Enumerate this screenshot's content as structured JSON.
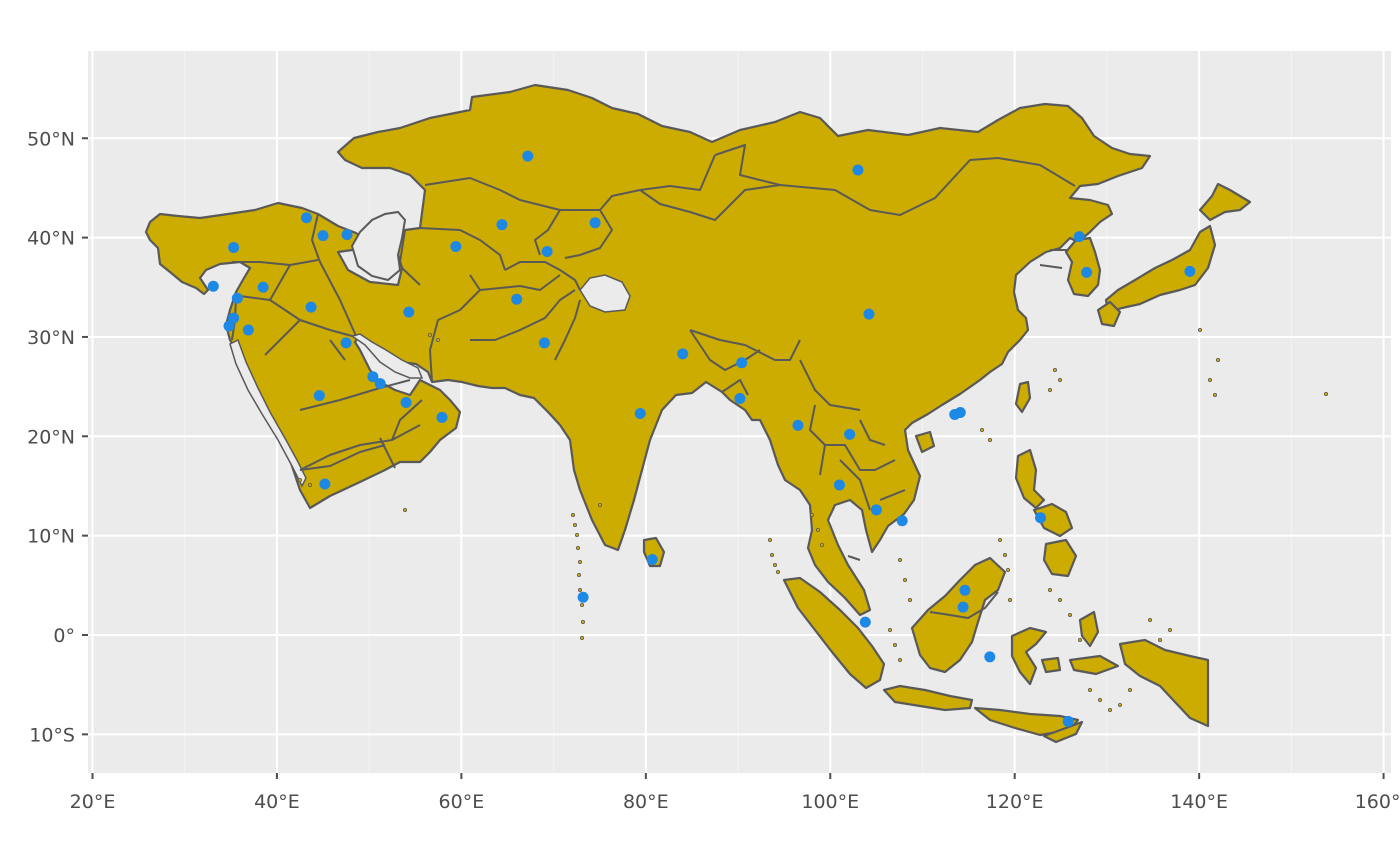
{
  "map": {
    "x_ticks": [
      {
        "deg": 20,
        "label": "20°E"
      },
      {
        "deg": 40,
        "label": "40°E"
      },
      {
        "deg": 60,
        "label": "60°E"
      },
      {
        "deg": 80,
        "label": "80°E"
      },
      {
        "deg": 100,
        "label": "100°E"
      },
      {
        "deg": 120,
        "label": "120°E"
      },
      {
        "deg": 140,
        "label": "140°E"
      },
      {
        "deg": 160,
        "label": "160°E"
      }
    ],
    "y_ticks": [
      {
        "deg": 50,
        "label": "50°N"
      },
      {
        "deg": 40,
        "label": "40°N"
      },
      {
        "deg": 30,
        "label": "30°N"
      },
      {
        "deg": 20,
        "label": "20°N"
      },
      {
        "deg": 10,
        "label": "10°N"
      },
      {
        "deg": 0,
        "label": "0°"
      },
      {
        "deg": -10,
        "label": "10°S"
      }
    ],
    "xlim": [
      19.5,
      160.5
    ],
    "ylim": [
      -14,
      58.5
    ],
    "colors": {
      "panel_background": "#EBEBEB",
      "land_fill": "#CCAC00",
      "border_stroke": "#595959",
      "point_fill": "#1E88E5",
      "gridline": "#FFFFFF"
    },
    "points": [
      {
        "lon": 67.2,
        "lat": 48.2
      },
      {
        "lon": 103.0,
        "lat": 46.8
      },
      {
        "lon": 43.2,
        "lat": 42.0
      },
      {
        "lon": 45.0,
        "lat": 40.2
      },
      {
        "lon": 47.6,
        "lat": 40.3
      },
      {
        "lon": 35.3,
        "lat": 39.0
      },
      {
        "lon": 59.4,
        "lat": 39.1
      },
      {
        "lon": 64.4,
        "lat": 41.3
      },
      {
        "lon": 74.5,
        "lat": 41.5
      },
      {
        "lon": 69.3,
        "lat": 38.6
      },
      {
        "lon": 127.0,
        "lat": 40.1
      },
      {
        "lon": 127.8,
        "lat": 36.5
      },
      {
        "lon": 139.0,
        "lat": 36.6
      },
      {
        "lon": 33.1,
        "lat": 35.1
      },
      {
        "lon": 38.5,
        "lat": 35.0
      },
      {
        "lon": 35.7,
        "lat": 33.9
      },
      {
        "lon": 43.7,
        "lat": 33.0
      },
      {
        "lon": 54.3,
        "lat": 32.5
      },
      {
        "lon": 66.0,
        "lat": 33.8
      },
      {
        "lon": 104.2,
        "lat": 32.3
      },
      {
        "lon": 35.3,
        "lat": 31.9
      },
      {
        "lon": 34.8,
        "lat": 31.1
      },
      {
        "lon": 36.9,
        "lat": 30.7
      },
      {
        "lon": 47.5,
        "lat": 29.4
      },
      {
        "lon": 69.0,
        "lat": 29.4
      },
      {
        "lon": 84.0,
        "lat": 28.3
      },
      {
        "lon": 90.4,
        "lat": 27.4
      },
      {
        "lon": 50.4,
        "lat": 26.0
      },
      {
        "lon": 51.2,
        "lat": 25.3
      },
      {
        "lon": 44.6,
        "lat": 24.1
      },
      {
        "lon": 54.0,
        "lat": 23.4
      },
      {
        "lon": 90.2,
        "lat": 23.8
      },
      {
        "lon": 79.4,
        "lat": 22.3
      },
      {
        "lon": 57.9,
        "lat": 21.9
      },
      {
        "lon": 113.5,
        "lat": 22.2
      },
      {
        "lon": 114.1,
        "lat": 22.4
      },
      {
        "lon": 96.5,
        "lat": 21.1
      },
      {
        "lon": 102.1,
        "lat": 20.2
      },
      {
        "lon": 101.0,
        "lat": 15.1
      },
      {
        "lon": 45.2,
        "lat": 15.2
      },
      {
        "lon": 105.0,
        "lat": 12.6
      },
      {
        "lon": 107.8,
        "lat": 11.5
      },
      {
        "lon": 122.8,
        "lat": 11.8
      },
      {
        "lon": 80.7,
        "lat": 7.6
      },
      {
        "lon": 114.6,
        "lat": 4.5
      },
      {
        "lon": 73.2,
        "lat": 3.8
      },
      {
        "lon": 114.4,
        "lat": 2.8
      },
      {
        "lon": 103.8,
        "lat": 1.3
      },
      {
        "lon": 117.3,
        "lat": -2.2
      },
      {
        "lon": 125.8,
        "lat": -8.7
      }
    ]
  }
}
